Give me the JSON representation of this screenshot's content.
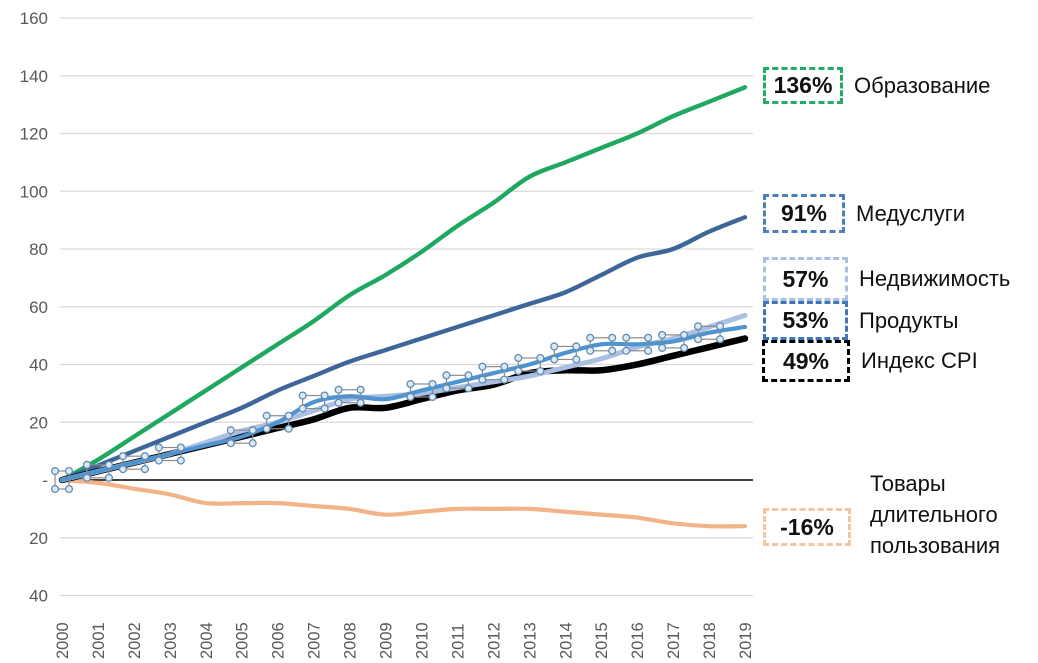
{
  "y_axis": {
    "tick_values": [
      160,
      140,
      120,
      100,
      80,
      60,
      40,
      20,
      0,
      -20,
      -40
    ],
    "tick_labels": [
      "160",
      "140",
      "120",
      "100",
      "80",
      "60",
      "40",
      "20",
      "-",
      "20",
      "40"
    ],
    "label_color": "#595959"
  },
  "x_axis": {
    "labels": [
      "2000",
      "2001",
      "2002",
      "2003",
      "2004",
      "2005",
      "2006",
      "2007",
      "2008",
      "2009",
      "2010",
      "2011",
      "2012",
      "2013",
      "2014",
      "2015",
      "2016",
      "2017",
      "2018",
      "2019"
    ],
    "label_color": "#595959"
  },
  "legend": [
    {
      "value": "136%",
      "label": "Образование",
      "color": "#21AB67"
    },
    {
      "value": "91%",
      "label": "Медуслуги",
      "color": "#4A80BF"
    },
    {
      "value": "57%",
      "label": "Недвижимость",
      "color": "#A9BFE3"
    },
    {
      "value": "53%",
      "label": "Продукты",
      "color": "#3F76BC"
    },
    {
      "value": "49%",
      "label": "Индекс CPI",
      "color": "#000000"
    },
    {
      "value": "-16%",
      "label": "Товары длительного пользования",
      "color": "#F6C49E"
    }
  ],
  "chart_data": {
    "type": "line",
    "title": "",
    "xlabel": "",
    "ylabel": "",
    "ylim": [
      -40,
      160
    ],
    "grid": true,
    "legend_position": "right",
    "grid_color": "#D9D9D9",
    "x": [
      2000,
      2001,
      2002,
      2003,
      2004,
      2005,
      2006,
      2007,
      2008,
      2009,
      2010,
      2011,
      2012,
      2013,
      2014,
      2015,
      2016,
      2017,
      2018,
      2019
    ],
    "series": [
      {
        "name": "Товары длительного пользования",
        "final_label": "-16%",
        "color": "#F2B389",
        "width": 4.2,
        "values": [
          0,
          -1,
          -3,
          -5,
          -8,
          -8,
          -8,
          -9,
          -10,
          -12,
          -11,
          -10,
          -10,
          -10,
          -11,
          -12,
          -13,
          -15,
          -16,
          -16
        ]
      },
      {
        "name": "Образование",
        "final_label": "136%",
        "color": "#1EA860",
        "width": 4.4,
        "values": [
          0,
          7,
          15,
          23,
          31,
          39,
          47,
          55,
          64,
          71,
          79,
          88,
          96,
          105,
          110,
          115,
          120,
          126,
          131,
          136
        ]
      },
      {
        "name": "Медуслуги",
        "final_label": "91%",
        "color": "#3F6699",
        "width": 4.4,
        "values": [
          0,
          5,
          10,
          15,
          20,
          25,
          31,
          36,
          41,
          45,
          49,
          53,
          57,
          61,
          65,
          71,
          77,
          80,
          86,
          91
        ]
      },
      {
        "name": "Индекс CPI",
        "final_label": "49%",
        "color": "#000000",
        "width": 6.5,
        "values": [
          0,
          3,
          6,
          9,
          12,
          15,
          18,
          21,
          25,
          25,
          28,
          31,
          33,
          37,
          38,
          38,
          40,
          43,
          46,
          49
        ]
      },
      {
        "name": "Недвижимость",
        "final_label": "57%",
        "color": "#A9BFE3",
        "width": 5,
        "values": [
          0,
          3,
          6,
          9,
          13,
          17,
          20,
          24,
          28,
          29,
          30,
          32,
          34,
          36,
          39,
          42,
          46,
          49,
          53,
          57
        ]
      },
      {
        "name": "Продукты",
        "final_label": "53%",
        "color": "#4E94D0",
        "width": 4.2,
        "selected": true,
        "handle_indices": [
          0,
          1,
          2,
          3,
          5,
          6,
          7,
          8,
          10,
          11,
          12,
          13,
          14,
          15,
          16,
          17,
          18
        ],
        "values": [
          0,
          3,
          6,
          9,
          12,
          15,
          20,
          27,
          29,
          28,
          31,
          34,
          37,
          40,
          44,
          47,
          47,
          48,
          51,
          53
        ]
      }
    ]
  }
}
